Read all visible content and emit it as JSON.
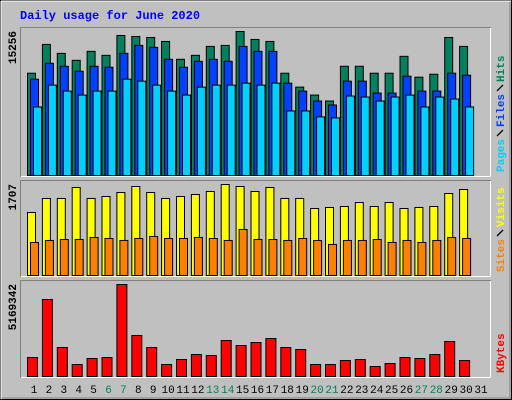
{
  "chart_data": [
    {
      "type": "bar",
      "title": "Daily usage for June 2020",
      "ylim": [
        0,
        15256
      ],
      "yticks": [
        15256
      ],
      "series": [
        {
          "name": "Hits",
          "color": "#00805c",
          "values": [
            10836,
            13887,
            12941,
            12204,
            13151,
            12731,
            14834,
            14729,
            14624,
            14203,
            12310,
            12731,
            13677,
            13783,
            15256,
            14414,
            14203,
            10836,
            9364,
            8522,
            7891,
            11573,
            11573,
            10836,
            10836,
            12625,
            10416,
            10731,
            14624,
            13677,
            null
          ]
        },
        {
          "name": "Files",
          "color": "#0040ff",
          "values": [
            10204,
            11888,
            11572,
            11046,
            11572,
            11467,
            12940,
            13781,
            13571,
            12308,
            11467,
            12098,
            12308,
            12098,
            13676,
            13150,
            13150,
            9784,
            8942,
            7890,
            7469,
            9994,
            9994,
            8732,
            8732,
            10520,
            8942,
            8942,
            10836,
            10625,
            null
          ]
        },
        {
          "name": "Pages",
          "color": "#00d0ff",
          "values": [
            7259,
            9573,
            8942,
            8521,
            8942,
            8942,
            10204,
            9994,
            9573,
            8942,
            8521,
            9363,
            9573,
            9573,
            9784,
            9573,
            9784,
            6838,
            6838,
            6207,
            6102,
            8416,
            8311,
            7890,
            8311,
            8521,
            7259,
            8311,
            8100,
            7259,
            null
          ]
        }
      ]
    },
    {
      "type": "bar",
      "ylim": [
        0,
        1707
      ],
      "yticks": [
        1707
      ],
      "series": [
        {
          "name": "Visits",
          "color": "#ffff00",
          "values": [
            1182,
            1445,
            1445,
            1651,
            1445,
            1482,
            1557,
            1670,
            1557,
            1445,
            1482,
            1520,
            1576,
            1707,
            1670,
            1576,
            1651,
            1445,
            1445,
            1257,
            1276,
            1294,
            1369,
            1294,
            1369,
            1257,
            1276,
            1294,
            1538,
            1613,
            null
          ]
        },
        {
          "name": "Sites",
          "color": "#ff8000",
          "values": [
            619,
            657,
            675,
            675,
            713,
            694,
            657,
            694,
            732,
            694,
            694,
            713,
            694,
            657,
            863,
            675,
            675,
            657,
            694,
            657,
            582,
            657,
            657,
            675,
            619,
            657,
            619,
            657,
            713,
            694,
            null
          ]
        }
      ]
    },
    {
      "type": "bar",
      "ylim": [
        0,
        5169342
      ],
      "yticks": [
        5169342
      ],
      "categories": [
        "1",
        "2",
        "3",
        "4",
        "5",
        "6",
        "7",
        "8",
        "9",
        "10",
        "11",
        "12",
        "13",
        "14",
        "15",
        "16",
        "17",
        "18",
        "19",
        "20",
        "21",
        "22",
        "23",
        "24",
        "25",
        "26",
        "27",
        "28",
        "29",
        "30",
        "31"
      ],
      "category_colors": [
        "#000000",
        "#000000",
        "#000000",
        "#000000",
        "#000000",
        "#00805c",
        "#00805c",
        "#000000",
        "#000000",
        "#000000",
        "#000000",
        "#000000",
        "#00805c",
        "#00805c",
        "#000000",
        "#000000",
        "#000000",
        "#000000",
        "#000000",
        "#00805c",
        "#00805c",
        "#000000",
        "#000000",
        "#000000",
        "#000000",
        "#000000",
        "#00805c",
        "#00805c",
        "#000000",
        "#000000",
        "#000000"
      ],
      "series": [
        {
          "name": "KBytes",
          "color": "#ff0000",
          "values": [
            1067591,
            4326553,
            1629481,
            674268,
            1011402,
            1067591,
            5169342,
            2303749,
            1629481,
            674268,
            955213,
            1236158,
            1179969,
            2022804,
            1741859,
            1910426,
            2135182,
            1629481,
            1517103,
            674268,
            674268,
            899024,
            955213,
            561890,
            730457,
            1067591,
            1011402,
            1236158,
            1966615,
            899024,
            null
          ]
        }
      ]
    }
  ]
}
